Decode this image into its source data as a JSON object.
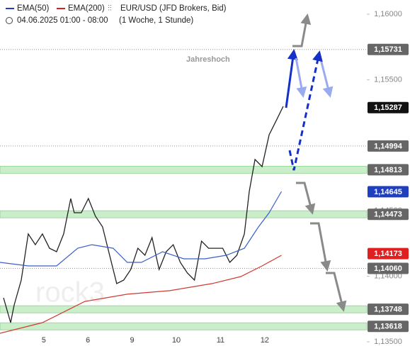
{
  "chart_data": {
    "type": "line",
    "legend": [
      {
        "name": "EMA(50)",
        "color": "#1f3fbf"
      },
      {
        "name": "EMA(200)",
        "color": "#d42020"
      }
    ],
    "instrument": "EUR/USD (JFD Brokers, Bid)",
    "date_range": "04.06.2025 01:00 - 08:00",
    "interval": "(1 Woche, 1 Stunde)",
    "annotation": "Jahreshoch",
    "watermark": "rock3",
    "xlim": [
      -0.99,
      7.31
    ],
    "xticks": [
      {
        "value": 0,
        "label": "5"
      },
      {
        "value": 1,
        "label": "6"
      },
      {
        "value": 2,
        "label": "9"
      },
      {
        "value": 3,
        "label": "10"
      },
      {
        "value": 4,
        "label": "11"
      },
      {
        "value": 5,
        "label": "12"
      }
    ],
    "ylim": [
      1.135,
      1.16
    ],
    "yticks": [
      {
        "value": 1.135,
        "label": "1,13500"
      },
      {
        "value": 1.14,
        "label": "1,14000"
      },
      {
        "value": 1.145,
        "label": "1,14500"
      },
      {
        "value": 1.155,
        "label": "1,15500"
      },
      {
        "value": 1.16,
        "label": "1,16000"
      }
    ],
    "series": [
      {
        "color": "#222222",
        "x": [
          -0.91,
          -0.75,
          -0.67,
          -0.51,
          -0.35,
          -0.19,
          -0.03,
          0.13,
          0.29,
          0.45,
          0.61,
          0.69,
          0.85,
          1.01,
          1.17,
          1.33,
          1.49,
          1.65,
          1.81,
          1.97,
          2.13,
          2.29,
          2.45,
          2.61,
          2.77,
          2.93,
          3.09,
          3.25,
          3.41,
          3.57,
          3.73,
          3.89,
          4.05,
          4.21,
          4.37,
          4.54,
          4.65,
          4.78,
          4.94,
          5.1,
          5.26,
          5.42
        ],
        "values": [
          1.13835,
          1.13646,
          1.13781,
          1.13971,
          1.14323,
          1.14241,
          1.14323,
          1.14214,
          1.14187,
          1.14323,
          1.14593,
          1.14485,
          1.14485,
          1.14593,
          1.14458,
          1.14377,
          1.1416,
          1.13944,
          1.13971,
          1.14052,
          1.14214,
          1.1416,
          1.14295,
          1.14052,
          1.14187,
          1.14241,
          1.14106,
          1.14025,
          1.13971,
          1.14268,
          1.14214,
          1.14214,
          1.14214,
          1.14106,
          1.1416,
          1.14323,
          1.14647,
          1.14891,
          1.14837,
          1.1508,
          1.15188,
          1.15297
        ]
      },
      {
        "name": "EMA(50)",
        "color": "#3a5fc8",
        "x": [
          -0.99,
          -0.35,
          0.29,
          0.77,
          1.09,
          1.57,
          1.89,
          2.21,
          2.69,
          3.17,
          3.65,
          4.13,
          4.54,
          4.86,
          5.1,
          5.38
        ],
        "values": [
          1.14106,
          1.14079,
          1.14079,
          1.14214,
          1.14241,
          1.14214,
          1.14106,
          1.14106,
          1.14187,
          1.14133,
          1.14133,
          1.1416,
          1.14214,
          1.14377,
          1.14485,
          1.14647
        ]
      },
      {
        "name": "EMA(200)",
        "color": "#d03a30",
        "x": [
          -0.99,
          -0.03,
          0.93,
          1.89,
          2.85,
          3.81,
          4.46,
          4.94,
          5.38
        ],
        "values": [
          1.13565,
          1.13646,
          1.13808,
          1.13863,
          1.1389,
          1.13944,
          1.13998,
          1.14079,
          1.1416
        ]
      }
    ],
    "levels": [
      {
        "value": 1.15731,
        "label": "1,15731",
        "color": "#666666",
        "line": "dotted"
      },
      {
        "value": 1.15287,
        "label": "1,15287",
        "color": "#111111",
        "line": "none"
      },
      {
        "value": 1.14994,
        "label": "1,14994",
        "color": "#666666",
        "line": "dotted"
      },
      {
        "value": 1.14813,
        "label": "1,14813",
        "color": "#666666",
        "line": "band"
      },
      {
        "value": 1.14645,
        "label": "1,14645",
        "color": "#1f3fbf",
        "line": "none"
      },
      {
        "value": 1.14473,
        "label": "1,14473",
        "color": "#666666",
        "line": "band"
      },
      {
        "value": 1.14173,
        "label": "1,14173",
        "color": "#e02020",
        "line": "none"
      },
      {
        "value": 1.1406,
        "label": "1,14060",
        "color": "#666666",
        "line": "dotted"
      },
      {
        "value": 1.13748,
        "label": "1,13748",
        "color": "#666666",
        "line": "band"
      },
      {
        "value": 1.13618,
        "label": "1,13618",
        "color": "#666666",
        "line": "band"
      }
    ]
  }
}
